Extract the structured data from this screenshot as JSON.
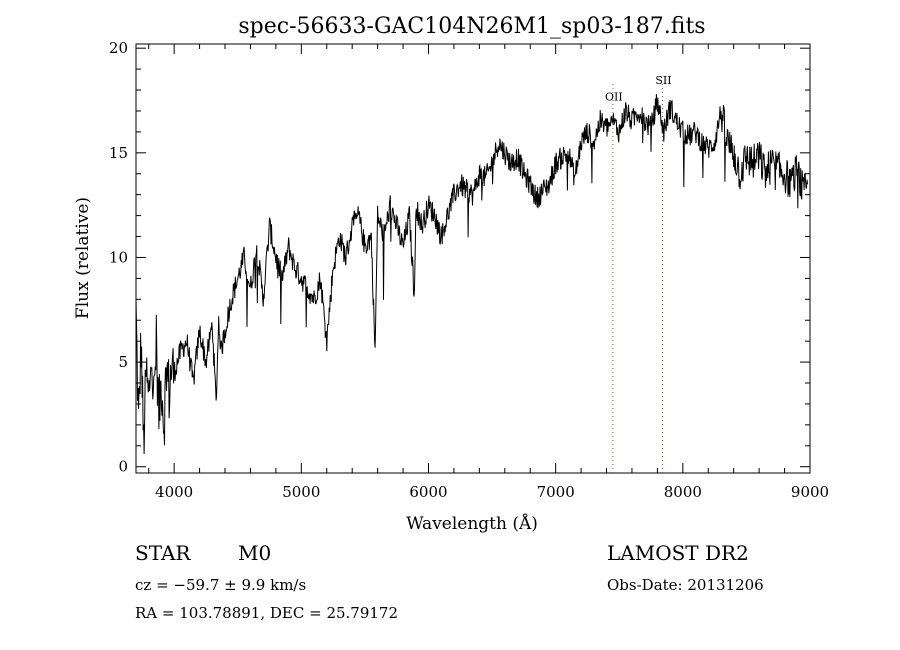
{
  "chart_data": {
    "type": "line",
    "title": "spec-56633-GAC104N26M1_sp03-187.fits",
    "xlabel": "Wavelength (Å)",
    "ylabel": "Flux (relative)",
    "xlim": [
      3700,
      9000
    ],
    "ylim": [
      -0.3,
      20.2
    ],
    "x_ticks": [
      4000,
      5000,
      6000,
      7000,
      8000,
      9000
    ],
    "y_ticks": [
      0,
      5,
      10,
      15,
      20
    ],
    "x_ticks_labels": [
      "4000",
      "5000",
      "6000",
      "7000",
      "8000",
      "9000"
    ],
    "y_ticks_labels": [
      "0",
      "5",
      "10",
      "15",
      "20"
    ],
    "grid": false,
    "series": [
      {
        "x": [
          3700,
          3720,
          3740,
          3760,
          3780,
          3800,
          3820,
          3840,
          3860,
          3880,
          3900,
          3920,
          3940,
          3960,
          3980,
          4000,
          4050,
          4100,
          4150,
          4200,
          4250,
          4300,
          4330,
          4350,
          4370,
          4400,
          4450,
          4500,
          4550,
          4600,
          4650,
          4700,
          4750,
          4800,
          4850,
          4900,
          4950,
          5000,
          5050,
          5100,
          5150,
          5200,
          5250,
          5300,
          5350,
          5400,
          5450,
          5500,
          5550,
          5580,
          5600,
          5650,
          5700,
          5750,
          5800,
          5850,
          5890,
          5900,
          5950,
          6000,
          6050,
          6100,
          6150,
          6200,
          6250,
          6300,
          6350,
          6400,
          6450,
          6500,
          6550,
          6600,
          6650,
          6700,
          6750,
          6800,
          6850,
          6900,
          6950,
          7000,
          7050,
          7100,
          7150,
          7200,
          7250,
          7300,
          7350,
          7400,
          7450,
          7500,
          7550,
          7600,
          7650,
          7700,
          7750,
          7800,
          7850,
          7900,
          7950,
          8000,
          8050,
          8100,
          8150,
          8200,
          8250,
          8300,
          8350,
          8400,
          8450,
          8500,
          8550,
          8600,
          8650,
          8700,
          8750,
          8800,
          8850,
          8900,
          8950,
          8980
        ],
        "values": [
          7.5,
          2.0,
          6.0,
          1.0,
          4.5,
          3.0,
          5.5,
          3.2,
          5.8,
          2.5,
          4.2,
          2.0,
          5.0,
          3.5,
          4.8,
          4.5,
          5.5,
          6.0,
          4.0,
          6.5,
          5.0,
          6.8,
          3.0,
          7.0,
          5.5,
          6.5,
          8.0,
          9.0,
          10.0,
          8.5,
          10.5,
          8.0,
          11.5,
          10.0,
          9.0,
          10.5,
          9.5,
          9.0,
          8.5,
          8.0,
          9.0,
          6.0,
          9.5,
          11.0,
          10.0,
          11.5,
          12.0,
          10.5,
          11.0,
          5.5,
          12.0,
          11.0,
          12.5,
          11.5,
          10.5,
          12.0,
          8.0,
          12.5,
          11.5,
          12.5,
          12.0,
          11.0,
          12.0,
          13.0,
          13.5,
          13.2,
          13.0,
          14.0,
          13.8,
          14.5,
          15.5,
          15.0,
          14.5,
          14.8,
          14.0,
          13.5,
          12.8,
          13.2,
          13.5,
          14.5,
          14.8,
          15.0,
          13.8,
          15.5,
          16.0,
          15.5,
          16.5,
          16.2,
          16.5,
          16.0,
          17.0,
          16.5,
          17.0,
          16.5,
          16.2,
          17.5,
          16.0,
          17.2,
          16.5,
          16.0,
          15.8,
          16.0,
          15.5,
          15.2,
          15.5,
          17.0,
          15.5,
          15.0,
          14.0,
          14.8,
          14.5,
          14.8,
          14.0,
          14.5,
          14.2,
          14.0,
          13.5,
          14.2,
          13.0,
          13.5
        ]
      }
    ],
    "line_labels": [
      {
        "label": "OII",
        "x": 7450,
        "y": 17.5
      },
      {
        "label": "SII",
        "x": 7840,
        "y": 18.3
      }
    ]
  },
  "info": {
    "object_class": "STAR",
    "subclass": "M0",
    "survey": "LAMOST DR2",
    "redshift_line": "cz = −59.7 ± 9.9 km/s",
    "obs_date": "Obs-Date: 20131206",
    "coords": "RA = 103.78891, DEC =  25.79172"
  }
}
